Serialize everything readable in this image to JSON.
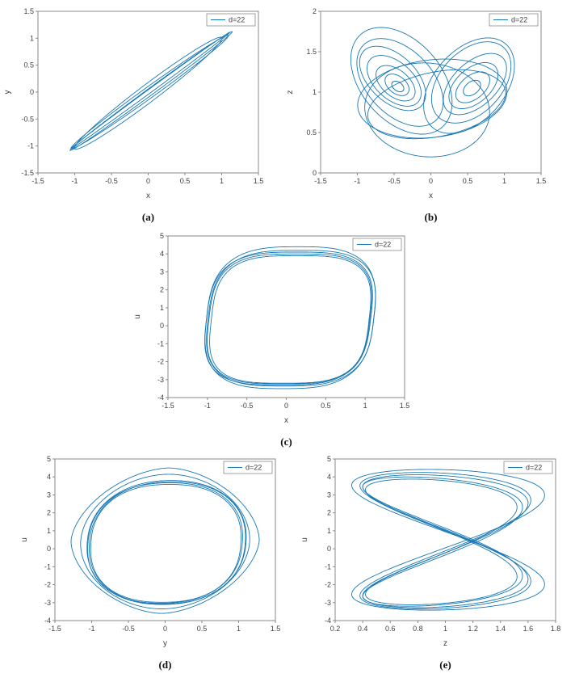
{
  "style": {
    "line_color": "#1878b4",
    "axis_color": "#8a8a8a",
    "background": "#ffffff",
    "tick_label_color": "#3f3f3f"
  },
  "captions": {
    "a": "(a)",
    "b": "(b)",
    "c": "(c)",
    "d": "(d)",
    "e": "(e)"
  },
  "chart_data": [
    {
      "id": "a",
      "type": "line",
      "title": "",
      "xlabel": "x",
      "ylabel": "y",
      "xlim": [
        -1.5,
        1.5
      ],
      "ylim": [
        -1.5,
        1.5
      ],
      "xtick_vals": [
        -1.5,
        -1,
        -0.5,
        0,
        0.5,
        1,
        1.5
      ],
      "xtick_labels": [
        "-1.5",
        "-1",
        "-0.5",
        "0",
        "0.5",
        "1",
        "1.5"
      ],
      "ytick_vals": [
        -1.5,
        -1,
        -0.5,
        0,
        0.5,
        1,
        1.5
      ],
      "ytick_labels": [
        "-1.5",
        "-1",
        "-0.5",
        "0",
        "0.5",
        "1",
        "1.5"
      ],
      "legend": "d=22",
      "legend_position": "top-right",
      "grid": false,
      "series": [
        {
          "name": "d=22",
          "curves": [
            {
              "kind": "ellipse",
              "cx": 0.04,
              "cy": 0.02,
              "rx": 1.56,
              "ry": 0.055,
              "rot": 45
            },
            {
              "kind": "ellipse",
              "cx": 0.02,
              "cy": 0.0,
              "rx": 1.5,
              "ry": 0.09,
              "rot": 44.5
            },
            {
              "kind": "ellipse",
              "cx": 0.0,
              "cy": -0.02,
              "rx": 1.44,
              "ry": 0.14,
              "rot": 46
            },
            {
              "kind": "ellipse",
              "cx": 0.03,
              "cy": 0.03,
              "rx": 1.53,
              "ry": 0.03,
              "rot": 45
            }
          ]
        }
      ]
    },
    {
      "id": "b",
      "type": "line",
      "title": "",
      "xlabel": "x",
      "ylabel": "z",
      "xlim": [
        -1.5,
        1.5
      ],
      "ylim": [
        0,
        2
      ],
      "xtick_vals": [
        -1.5,
        -1,
        -0.5,
        0,
        0.5,
        1,
        1.5
      ],
      "xtick_labels": [
        "-1.5",
        "-1",
        "-0.5",
        "0",
        "0.5",
        "1",
        "1.5"
      ],
      "ytick_vals": [
        0,
        0.5,
        1,
        1.5,
        2
      ],
      "ytick_labels": [
        "0",
        "0.5",
        "1",
        "1.5",
        "2"
      ],
      "legend": "d=22",
      "legend_position": "top-right",
      "grid": false,
      "series": [
        {
          "name": "d=22",
          "curves": [
            {
              "kind": "ellipse",
              "cx": -0.52,
              "cy": 1.17,
              "rx": 0.52,
              "ry": 0.3,
              "rot": -38
            },
            {
              "kind": "ellipse",
              "cx": -0.5,
              "cy": 1.14,
              "rx": 0.42,
              "ry": 0.24,
              "rot": -36
            },
            {
              "kind": "ellipse",
              "cx": -0.48,
              "cy": 1.11,
              "rx": 0.3,
              "ry": 0.17,
              "rot": -34
            },
            {
              "kind": "ellipse",
              "cx": -0.46,
              "cy": 1.09,
              "rx": 0.18,
              "ry": 0.11,
              "rot": -32
            },
            {
              "kind": "ellipse",
              "cx": -0.45,
              "cy": 1.07,
              "rx": 0.09,
              "ry": 0.055,
              "rot": -30
            },
            {
              "kind": "ellipse",
              "cx": -0.42,
              "cy": 1.12,
              "rx": 0.68,
              "ry": 0.42,
              "rot": -40
            },
            {
              "kind": "ellipse",
              "cx": -0.4,
              "cy": 1.14,
              "rx": 0.8,
              "ry": 0.52,
              "rot": -42
            },
            {
              "kind": "ellipse",
              "cx": 0.6,
              "cy": 1.1,
              "rx": 0.5,
              "ry": 0.28,
              "rot": 38
            },
            {
              "kind": "ellipse",
              "cx": 0.58,
              "cy": 1.08,
              "rx": 0.38,
              "ry": 0.22,
              "rot": 36
            },
            {
              "kind": "ellipse",
              "cx": 0.57,
              "cy": 1.06,
              "rx": 0.26,
              "ry": 0.15,
              "rot": 34
            },
            {
              "kind": "ellipse",
              "cx": 0.56,
              "cy": 1.05,
              "rx": 0.13,
              "ry": 0.08,
              "rot": 32
            },
            {
              "kind": "ellipse",
              "cx": 0.55,
              "cy": 1.12,
              "rx": 0.62,
              "ry": 0.4,
              "rot": 40
            },
            {
              "kind": "ellipse",
              "cx": 0.52,
              "cy": 1.08,
              "rx": 0.72,
              "ry": 0.46,
              "rot": 42
            },
            {
              "kind": "ellipse",
              "cx": 0.02,
              "cy": 0.92,
              "rx": 1.02,
              "ry": 0.48,
              "rot": 6
            },
            {
              "kind": "ellipse",
              "cx": -0.05,
              "cy": 0.78,
              "rx": 0.85,
              "ry": 0.58,
              "rot": -4
            },
            {
              "kind": "ellipse",
              "cx": 0.08,
              "cy": 0.85,
              "rx": 0.95,
              "ry": 0.4,
              "rot": 10
            }
          ]
        }
      ]
    },
    {
      "id": "c",
      "type": "line",
      "title": "",
      "xlabel": "x",
      "ylabel": "u",
      "xlim": [
        -1.5,
        1.5
      ],
      "ylim": [
        -4,
        5
      ],
      "xtick_vals": [
        -1.5,
        -1,
        -0.5,
        0,
        0.5,
        1,
        1.5
      ],
      "xtick_labels": [
        "-1.5",
        "-1",
        "-0.5",
        "0",
        "0.5",
        "1",
        "1.5"
      ],
      "ytick_vals": [
        -4,
        -3,
        -2,
        -1,
        0,
        1,
        2,
        3,
        4,
        5
      ],
      "ytick_labels": [
        "-4",
        "-3",
        "-2",
        "-1",
        "0",
        "1",
        "2",
        "3",
        "4",
        "5"
      ],
      "legend": "d=22",
      "legend_position": "top-right",
      "grid": false,
      "series": [
        {
          "name": "d=22",
          "curves": [
            {
              "kind": "superellipse",
              "cx": 0.05,
              "cy": 0.45,
              "a": 1.06,
              "b": 3.95,
              "n": 3.0,
              "shear": 0.1
            },
            {
              "kind": "superellipse",
              "cx": 0.03,
              "cy": 0.4,
              "a": 1.04,
              "b": 3.7,
              "n": 3.2,
              "shear": 0.1
            },
            {
              "kind": "superellipse",
              "cx": 0.05,
              "cy": 0.35,
              "a": 1.0,
              "b": 3.55,
              "n": 3.3,
              "shear": 0.09
            },
            {
              "kind": "superellipse",
              "cx": 0.04,
              "cy": 0.38,
              "a": 1.02,
              "b": 3.62,
              "n": 3.25,
              "shear": 0.095
            },
            {
              "kind": "superellipse",
              "cx": 0.06,
              "cy": 0.42,
              "a": 1.05,
              "b": 3.78,
              "n": 3.1,
              "shear": 0.1
            }
          ]
        }
      ]
    },
    {
      "id": "d",
      "type": "line",
      "title": "",
      "xlabel": "y",
      "ylabel": "u",
      "xlim": [
        -1.5,
        1.5
      ],
      "ylim": [
        -4,
        5
      ],
      "xtick_vals": [
        -1.5,
        -1,
        -0.5,
        0,
        0.5,
        1,
        1.5
      ],
      "xtick_labels": [
        "-1.5",
        "-1",
        "-0.5",
        "0",
        "0.5",
        "1",
        "1.5"
      ],
      "ytick_vals": [
        -4,
        -3,
        -2,
        -1,
        0,
        1,
        2,
        3,
        4,
        5
      ],
      "ytick_labels": [
        "-4",
        "-3",
        "-2",
        "-1",
        "0",
        "1",
        "2",
        "3",
        "4",
        "5"
      ],
      "legend": "d=22",
      "legend_position": "top-right",
      "grid": false,
      "series": [
        {
          "name": "d=22",
          "curves": [
            {
              "kind": "superellipse",
              "cx": 0.0,
              "cy": 0.45,
              "a": 1.28,
              "b": 4.05,
              "n": 1.7,
              "shear": 0.05
            },
            {
              "kind": "superellipse",
              "cx": 0.0,
              "cy": 0.4,
              "a": 1.15,
              "b": 3.75,
              "n": 1.9,
              "shear": 0.05
            },
            {
              "kind": "superellipse",
              "cx": 0.02,
              "cy": 0.35,
              "a": 1.08,
              "b": 3.45,
              "n": 2.2,
              "shear": 0.06
            },
            {
              "kind": "superellipse",
              "cx": 0.0,
              "cy": 0.32,
              "a": 1.05,
              "b": 3.35,
              "n": 2.3,
              "shear": 0.06
            },
            {
              "kind": "superellipse",
              "cx": 0.01,
              "cy": 0.3,
              "a": 1.02,
              "b": 3.28,
              "n": 2.35,
              "shear": 0.05
            },
            {
              "kind": "superellipse",
              "cx": 0.03,
              "cy": 0.33,
              "a": 1.06,
              "b": 3.4,
              "n": 2.25,
              "shear": 0.06
            }
          ]
        }
      ]
    },
    {
      "id": "e",
      "type": "line",
      "title": "",
      "xlabel": "z",
      "ylabel": "u",
      "xlim": [
        0.2,
        1.8
      ],
      "ylim": [
        -4,
        5
      ],
      "xtick_vals": [
        0.2,
        0.4,
        0.6,
        0.8,
        1,
        1.2,
        1.4,
        1.6,
        1.8
      ],
      "xtick_labels": [
        "0.2",
        "0.4",
        "0.6",
        "0.8",
        "1",
        "1.2",
        "1.4",
        "1.6",
        "1.8"
      ],
      "ytick_vals": [
        -4,
        -3,
        -2,
        -1,
        0,
        1,
        2,
        3,
        4,
        5
      ],
      "ytick_labels": [
        "-4",
        "-3",
        "-2",
        "-1",
        "0",
        "1",
        "2",
        "3",
        "4",
        "5"
      ],
      "legend": "d=22",
      "legend_position": "top-right",
      "grid": false,
      "series": [
        {
          "name": "d=22",
          "curves": [
            {
              "kind": "lissajous",
              "cx": 1.0,
              "cy": 0.45,
              "ax": 0.62,
              "ay": 3.8,
              "fx": 2,
              "fy": 1,
              "phx": 0.3,
              "phy": 0
            },
            {
              "kind": "lissajous",
              "cx": 0.98,
              "cy": 0.4,
              "ax": 0.58,
              "ay": 3.6,
              "fx": 2,
              "fy": 1,
              "phx": 0.45,
              "phy": 0
            },
            {
              "kind": "lissajous",
              "cx": 1.02,
              "cy": 0.5,
              "ax": 0.7,
              "ay": 3.92,
              "fx": 2,
              "fy": 1,
              "phx": 0.2,
              "phy": 0
            },
            {
              "kind": "lissajous",
              "cx": 0.97,
              "cy": 0.38,
              "ax": 0.55,
              "ay": 3.5,
              "fx": 2,
              "fy": 1,
              "phx": 0.4,
              "phy": 0
            },
            {
              "kind": "lissajous",
              "cx": 1.0,
              "cy": 0.42,
              "ax": 0.6,
              "ay": 3.7,
              "fx": 2,
              "fy": 1,
              "phx": 0.35,
              "phy": 0
            }
          ]
        }
      ]
    }
  ]
}
